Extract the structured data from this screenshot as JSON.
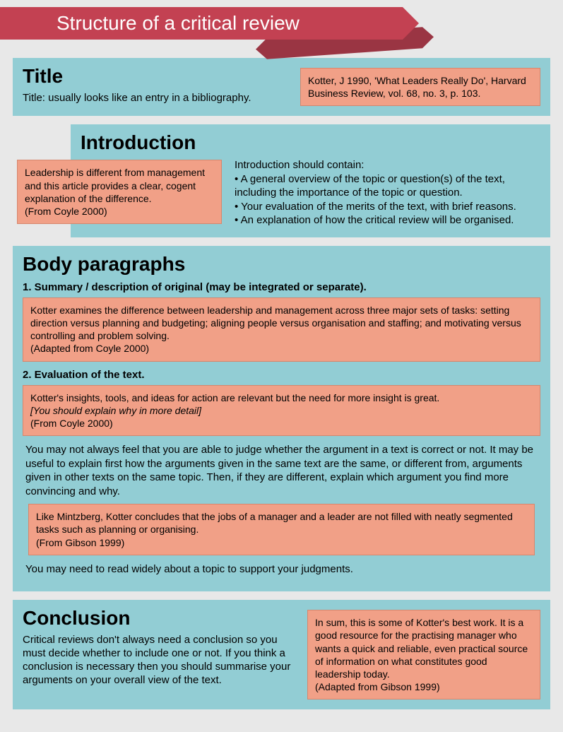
{
  "colors": {
    "page_bg": "#e8e8e8",
    "panel_bg": "#92cdd4",
    "example_bg": "#f1a087",
    "banner_bg": "#c34152",
    "ribbon_bg": "#9a3543"
  },
  "header": {
    "title": "Structure of a critical review"
  },
  "title_section": {
    "heading": "Title",
    "description": "Title: usually looks like an entry in a bibliography.",
    "example": "Kotter, J 1990, 'What Leaders Really Do', Harvard Business Review, vol. 68, no. 3, p. 103."
  },
  "intro_section": {
    "heading": "Introduction",
    "example": "Leadership is different from management and this article provides a clear, cogent explanation of the difference.\n(From Coyle 2000)",
    "text": "Introduction should contain:\n• A general overview of the topic or question(s) of the text, including the importance of the topic or question.\n• Your evaluation of the merits of the text, with brief reasons.\n• An explanation of how the critical review will be organised."
  },
  "body_section": {
    "heading": "Body paragraphs",
    "sub1": "1. Summary / description of original (may be integrated or separate).",
    "example1": "Kotter examines the difference between leadership and management across three major sets of tasks: setting direction versus planning and budgeting; aligning people versus organisation and staffing; and motivating versus controlling and problem solving.\n(Adapted from Coyle 2000)",
    "sub2": "2. Evaluation of the text.",
    "example2_line1": "Kotter's insights, tools, and ideas for action are relevant but the need for more insight is great.",
    "example2_line2": " [You should explain why in more detail]",
    "example2_line3": "(From Coyle 2000)",
    "note1": "You may not always feel that you are able to judge whether the argument in a text is correct or not. It may be useful to explain first how the arguments given in the same text are the same, or different from, arguments given in other texts on the same topic. Then, if they are different, explain which argument you find more convincing and why.",
    "example3": "Like Mintzberg, Kotter concludes that the jobs of a manager and a leader are not filled with neatly segmented tasks such as planning or organising.\n(From Gibson 1999)",
    "note2": "You may need to read widely about a topic to support your judgments."
  },
  "conclusion_section": {
    "heading": "Conclusion",
    "description": "Critical reviews don't always need a conclusion so you must decide whether to include one or not. If you think a conclusion is necessary then you should summarise your arguments on your overall view of the text.",
    "example": "In sum, this is some of Kotter's best work. It is a good resource for the practising manager who wants a quick and reliable, even practical source of information on what constitutes good leadership today.\n(Adapted from Gibson 1999)"
  }
}
